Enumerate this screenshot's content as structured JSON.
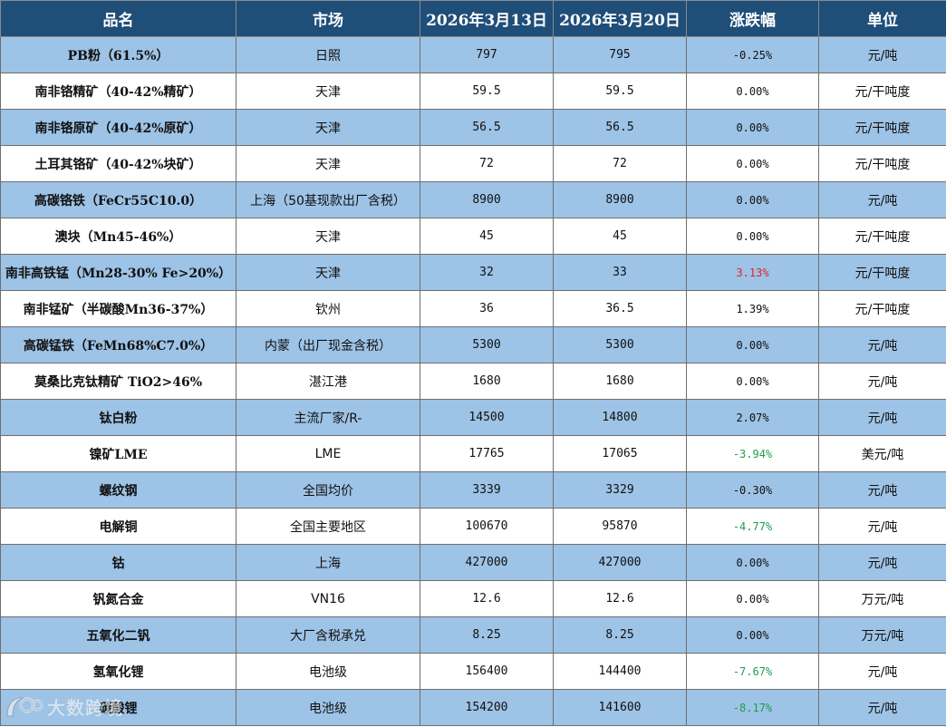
{
  "table": {
    "headers": [
      "品名",
      "市场",
      "2026年3月13日",
      "2026年3月20日",
      "涨跌幅",
      "单位"
    ],
    "rows": [
      {
        "name": "PB粉（61.5%）",
        "market": "日照",
        "prev": "797",
        "curr": "795",
        "change": "-0.25%",
        "unit": "元/吨",
        "trend": "flat"
      },
      {
        "name": "南非铬精矿（40-42%精矿）",
        "market": "天津",
        "prev": "59.5",
        "curr": "59.5",
        "change": "0.00%",
        "unit": "元/干吨度",
        "trend": "flat"
      },
      {
        "name": "南非铬原矿（40-42%原矿）",
        "market": "天津",
        "prev": "56.5",
        "curr": "56.5",
        "change": "0.00%",
        "unit": "元/干吨度",
        "trend": "flat"
      },
      {
        "name": "土耳其铬矿（40-42%块矿）",
        "market": "天津",
        "prev": "72",
        "curr": "72",
        "change": "0.00%",
        "unit": "元/干吨度",
        "trend": "flat"
      },
      {
        "name": "高碳铬铁（FeCr55C10.0）",
        "market": "上海（50基现款出厂含税）",
        "prev": "8900",
        "curr": "8900",
        "change": "0.00%",
        "unit": "元/吨",
        "trend": "flat"
      },
      {
        "name": "澳块（Mn45-46%）",
        "market": "天津",
        "prev": "45",
        "curr": "45",
        "change": "0.00%",
        "unit": "元/干吨度",
        "trend": "flat"
      },
      {
        "name": "南非高铁锰（Mn28-30% Fe>20%）",
        "market": "天津",
        "prev": "32",
        "curr": "33",
        "change": "3.13%",
        "unit": "元/干吨度",
        "trend": "up"
      },
      {
        "name": "南非锰矿（半碳酸Mn36-37%）",
        "market": "钦州",
        "prev": "36",
        "curr": "36.5",
        "change": "1.39%",
        "unit": "元/干吨度",
        "trend": "flat"
      },
      {
        "name": "高碳锰铁（FeMn68%C7.0%）",
        "market": "内蒙（出厂现金含税）",
        "prev": "5300",
        "curr": "5300",
        "change": "0.00%",
        "unit": "元/吨",
        "trend": "flat"
      },
      {
        "name": "莫桑比克钛精矿 TiO2>46%",
        "market": "湛江港",
        "prev": "1680",
        "curr": "1680",
        "change": "0.00%",
        "unit": "元/吨",
        "trend": "flat"
      },
      {
        "name": "钛白粉",
        "market": "主流厂家/R-",
        "prev": "14500",
        "curr": "14800",
        "change": "2.07%",
        "unit": "元/吨",
        "trend": "flat"
      },
      {
        "name": "镍矿LME",
        "market": "LME",
        "prev": "17765",
        "curr": "17065",
        "change": "-3.94%",
        "unit": "美元/吨",
        "trend": "down"
      },
      {
        "name": "螺纹钢",
        "market": "全国均价",
        "prev": "3339",
        "curr": "3329",
        "change": "-0.30%",
        "unit": "元/吨",
        "trend": "flat"
      },
      {
        "name": "电解铜",
        "market": "全国主要地区",
        "prev": "100670",
        "curr": "95870",
        "change": "-4.77%",
        "unit": "元/吨",
        "trend": "down"
      },
      {
        "name": "钴",
        "market": "上海",
        "prev": "427000",
        "curr": "427000",
        "change": "0.00%",
        "unit": "元/吨",
        "trend": "flat"
      },
      {
        "name": "钒氮合金",
        "market": "VN16",
        "prev": "12.6",
        "curr": "12.6",
        "change": "0.00%",
        "unit": "万元/吨",
        "trend": "flat"
      },
      {
        "name": "五氧化二钒",
        "market": "大厂含税承兑",
        "prev": "8.25",
        "curr": "8.25",
        "change": "0.00%",
        "unit": "万元/吨",
        "trend": "flat"
      },
      {
        "name": "氢氧化锂",
        "market": "电池级",
        "prev": "156400",
        "curr": "144400",
        "change": "-7.67%",
        "unit": "元/吨",
        "trend": "down"
      },
      {
        "name": "碳酸锂",
        "market": "电池级",
        "prev": "154200",
        "curr": "141600",
        "change": "-8.17%",
        "unit": "元/吨",
        "trend": "down"
      }
    ]
  },
  "colors": {
    "header_bg": "#1f4e79",
    "band_blue": "#9dc3e6",
    "up": "#e0252b",
    "down": "#1e9e4a"
  },
  "watermark": {
    "icon": "logo-icon",
    "text": "大数跨境"
  }
}
